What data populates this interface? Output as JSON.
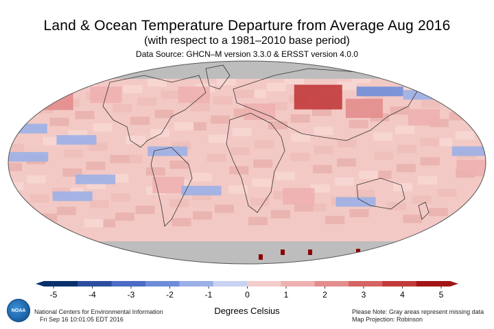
{
  "title": "Land & Ocean Temperature Departure from Average Aug 2016",
  "subtitle": "(with respect to a 1981–2010 base period)",
  "source": "Data Source: GHCN–M version 3.3.0 & ERSST version 4.0.0",
  "footer": {
    "organization": "National Centers for Environmental Information",
    "date": "Fri Sep 16 10:01:05 EDT 2016",
    "units": "Degrees Celsius",
    "note": "Please Note: Gray areas represent missing data",
    "projection": "Map Projection: Robinson",
    "logo_text": "NOAA"
  },
  "colorbar": {
    "ticks": [
      "-5",
      "-4",
      "-3",
      "-2",
      "-1",
      "0",
      "1",
      "2",
      "3",
      "4",
      "5"
    ],
    "colors": [
      "#08306b",
      "#2c4ea0",
      "#4a6cc4",
      "#6e8dd8",
      "#9bb0e6",
      "#c8d2f2",
      "#f4cccc",
      "#eeb0b0",
      "#e38d8d",
      "#d56464",
      "#c23a3a",
      "#a31515"
    ],
    "missing_color": "#bdbdbd"
  },
  "map": {
    "ocean_color": "#f3c9c5",
    "warm_regions": [
      {
        "lon": 60,
        "lat": 58,
        "level": 5
      },
      {
        "lon": 95,
        "lat": 48,
        "level": 3
      },
      {
        "lon": -160,
        "lat": 55,
        "level": 3
      },
      {
        "lon": -120,
        "lat": 60,
        "level": 2
      },
      {
        "lon": -45,
        "lat": 60,
        "level": 2
      },
      {
        "lon": 10,
        "lat": 45,
        "level": 2
      },
      {
        "lon": 140,
        "lat": 40,
        "level": 2
      },
      {
        "lon": 170,
        "lat": -5,
        "level": 2
      },
      {
        "lon": -60,
        "lat": -20,
        "level": 2
      },
      {
        "lon": 40,
        "lat": -30,
        "level": 2
      }
    ],
    "cool_regions": [
      {
        "lon": -165,
        "lat": 5,
        "level": -1
      },
      {
        "lon": -130,
        "lat": 20,
        "level": -1
      },
      {
        "lon": -170,
        "lat": 30,
        "level": -1
      },
      {
        "lon": 115,
        "lat": 63,
        "level": -2
      },
      {
        "lon": 150,
        "lat": 60,
        "level": -1
      },
      {
        "lon": -115,
        "lat": -15,
        "level": -1
      },
      {
        "lon": -135,
        "lat": -30,
        "level": -1
      },
      {
        "lon": -35,
        "lat": -25,
        "level": -1
      },
      {
        "lon": 85,
        "lat": -35,
        "level": -1
      },
      {
        "lon": 170,
        "lat": 10,
        "level": -1
      },
      {
        "lon": -60,
        "lat": 10,
        "level": -1
      }
    ]
  }
}
